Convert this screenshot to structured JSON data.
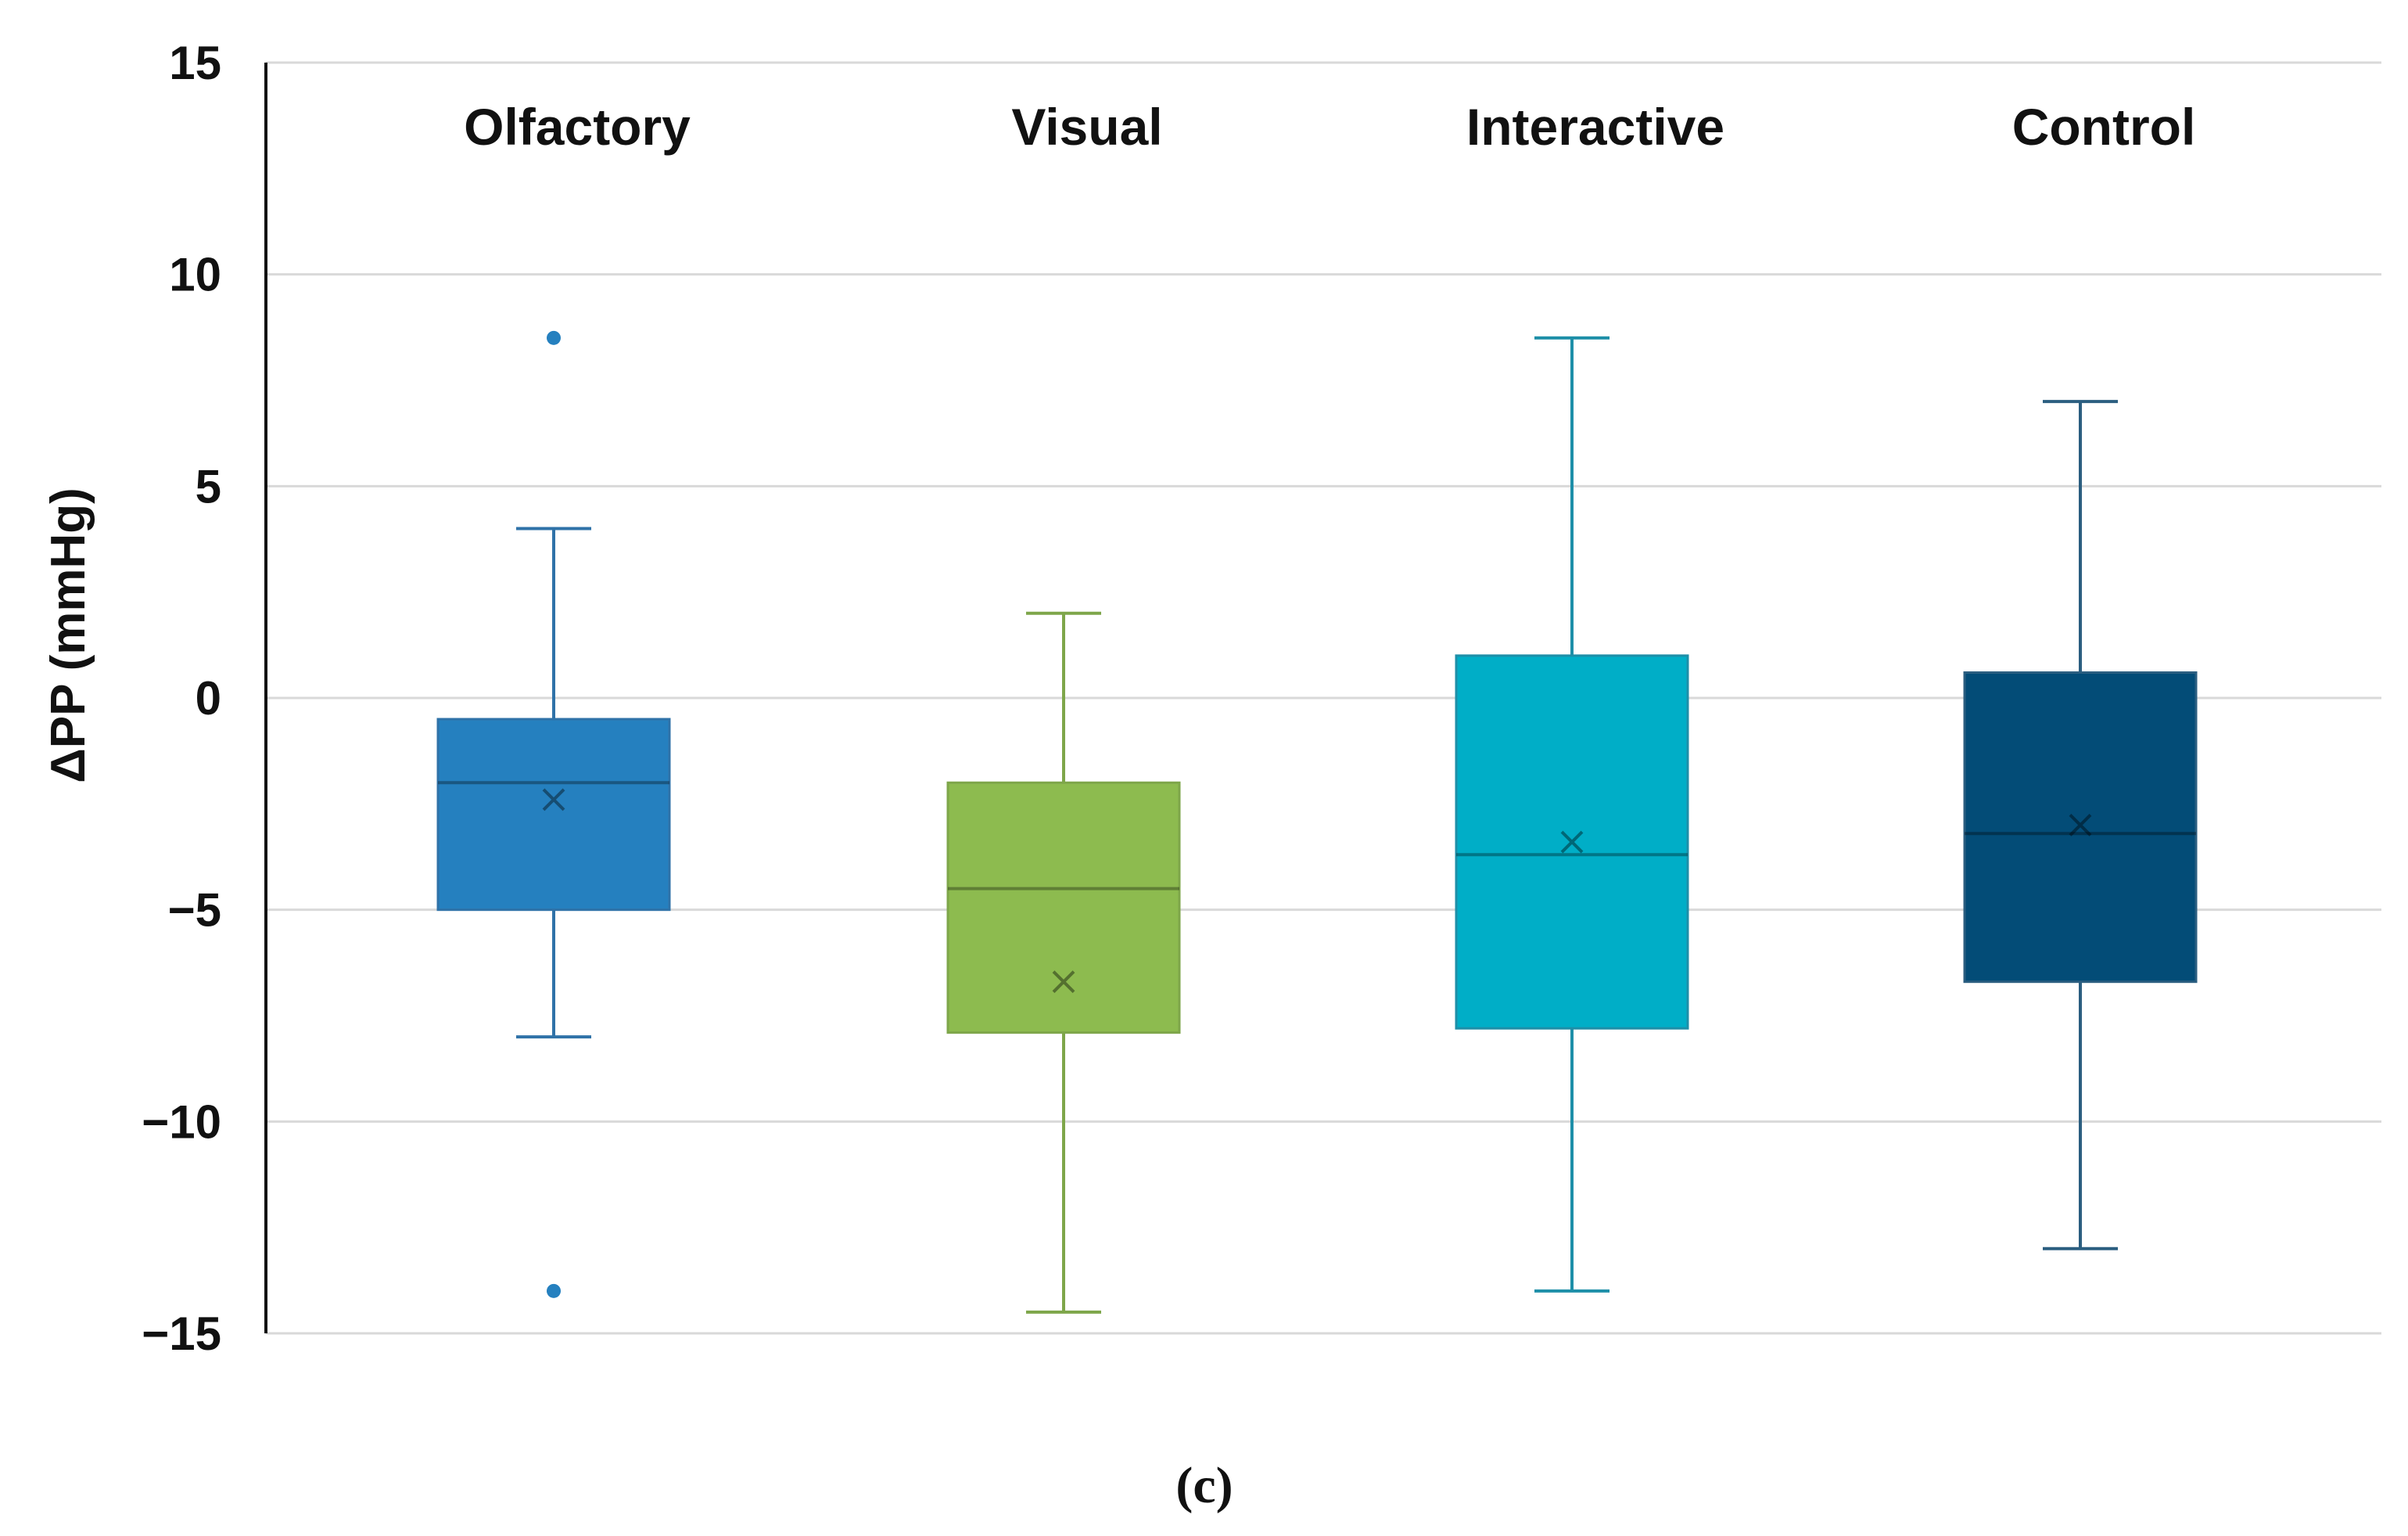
{
  "chart_data": {
    "type": "box",
    "ylabel": "ΔPP (mmHg)",
    "xlabel": "",
    "ylim": [
      -15,
      15
    ],
    "yticks": [
      15,
      10,
      5,
      0,
      -5,
      -10,
      -15
    ],
    "ytick_labels": [
      "15",
      "10",
      "5",
      "0",
      "−5",
      "−10",
      "−15"
    ],
    "grid": true,
    "panel_label": "(c)",
    "series": [
      {
        "name": "Olfactory",
        "color": "#2580BF",
        "whisker_color": "#2F72A8",
        "min": -8,
        "q1": -5,
        "median": -2,
        "q3": -0.5,
        "max": 4,
        "mean": -2.4,
        "outliers": [
          8.5,
          -14
        ]
      },
      {
        "name": "Visual",
        "color": "#8DBB4F",
        "whisker_color": "#7EA64A",
        "min": -14.5,
        "q1": -7.9,
        "median": -4.5,
        "q3": -2,
        "max": 2,
        "mean": -6.7,
        "outliers": []
      },
      {
        "name": "Interactive",
        "color": "#00AEC7",
        "whisker_color": "#1E8FA8",
        "min": -14,
        "q1": -7.8,
        "median": -3.7,
        "q3": 1,
        "max": 8.5,
        "mean": -3.4,
        "outliers": []
      },
      {
        "name": "Control",
        "color": "#034C77",
        "whisker_color": "#2B5E80",
        "min": -13,
        "q1": -6.7,
        "median": -3.2,
        "q3": 0.6,
        "max": 7,
        "mean": -3,
        "outliers": []
      }
    ]
  }
}
